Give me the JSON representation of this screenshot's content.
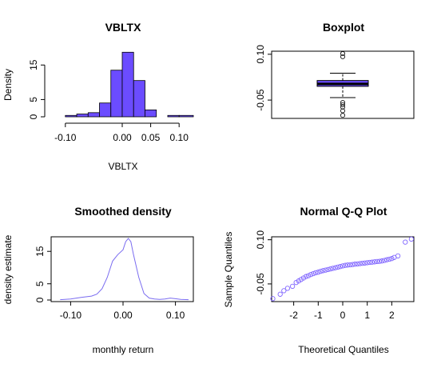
{
  "colors": {
    "fill": "#6b4cff",
    "line": "#7a6cf0",
    "qq_point": "#8066ff"
  },
  "chart_data": [
    {
      "type": "bar",
      "title": "VBLTX",
      "xlabel": "VBLTX",
      "ylabel": "Density",
      "bins": [
        {
          "x0": -0.125,
          "x1": -0.1,
          "density": 0
        },
        {
          "x0": -0.1,
          "x1": -0.08,
          "density": 0.4
        },
        {
          "x0": -0.08,
          "x1": -0.06,
          "density": 0.8
        },
        {
          "x0": -0.06,
          "x1": -0.04,
          "density": 1.2
        },
        {
          "x0": -0.04,
          "x1": -0.02,
          "density": 4
        },
        {
          "x0": -0.02,
          "x1": 0.0,
          "density": 13.5
        },
        {
          "x0": 0.0,
          "x1": 0.02,
          "density": 18.7
        },
        {
          "x0": 0.02,
          "x1": 0.04,
          "density": 10.5
        },
        {
          "x0": 0.04,
          "x1": 0.06,
          "density": 2
        },
        {
          "x0": 0.06,
          "x1": 0.08,
          "density": 0
        },
        {
          "x0": 0.08,
          "x1": 0.1,
          "density": 0.4
        },
        {
          "x0": 0.1,
          "x1": 0.125,
          "density": 0.4
        }
      ],
      "xlim": [
        -0.125,
        0.125
      ],
      "ylim": [
        0,
        19
      ],
      "xticks": [
        -0.1,
        0.0,
        0.05,
        0.1
      ],
      "xtick_labels": [
        "-0.10",
        "0.00",
        "0.05",
        "0.10"
      ],
      "yticks": [
        0,
        5,
        15
      ],
      "ytick_labels": [
        "0",
        "5",
        "15"
      ]
    },
    {
      "type": "boxplot",
      "title": "Boxplot",
      "ylim": [
        -0.11,
        0.11
      ],
      "q1": -0.005,
      "median": 0.003,
      "q3": 0.014,
      "whisker_low": -0.042,
      "whisker_high": 0.038,
      "outliers": [
        0.102,
        0.092,
        -0.058,
        -0.065,
        -0.073,
        -0.085,
        -0.1
      ],
      "yticks": [
        -0.05,
        0.1
      ],
      "ytick_labels": [
        "-0.05",
        "0.10"
      ]
    },
    {
      "type": "line",
      "title": "Smoothed density",
      "xlabel": "monthly return",
      "ylabel": "density estimate",
      "x": [
        -0.12,
        -0.1,
        -0.08,
        -0.06,
        -0.05,
        -0.04,
        -0.03,
        -0.02,
        -0.01,
        0.0,
        0.005,
        0.01,
        0.015,
        0.02,
        0.03,
        0.04,
        0.05,
        0.06,
        0.07,
        0.08,
        0.09,
        0.1,
        0.11,
        0.125
      ],
      "y": [
        0.1,
        0.3,
        0.8,
        1.2,
        1.8,
        3.5,
        7,
        12,
        14,
        15.5,
        18,
        19,
        18,
        14,
        7,
        2,
        0.6,
        0.3,
        0.2,
        0.3,
        0.6,
        0.4,
        0.2,
        0.1
      ],
      "xlim": [
        -0.125,
        0.125
      ],
      "ylim": [
        0,
        19
      ],
      "xticks": [
        -0.1,
        0.0,
        0.1
      ],
      "xtick_labels": [
        "-0.10",
        "0.00",
        "0.10"
      ],
      "yticks": [
        0,
        5,
        15
      ],
      "ytick_labels": [
        "0",
        "5",
        "15"
      ]
    },
    {
      "type": "scatter",
      "title": "Normal Q-Q Plot",
      "xlabel": "Theoretical Quantiles",
      "ylabel": "Sample Quantiles",
      "x": [
        -2.85,
        -2.55,
        -2.4,
        -2.25,
        -2.05,
        -1.9,
        -1.8,
        -1.7,
        -1.6,
        -1.5,
        -1.4,
        -1.3,
        -1.2,
        -1.1,
        -1.0,
        -0.9,
        -0.8,
        -0.7,
        -0.6,
        -0.5,
        -0.4,
        -0.3,
        -0.2,
        -0.1,
        0.0,
        0.1,
        0.2,
        0.3,
        0.4,
        0.5,
        0.6,
        0.7,
        0.8,
        0.9,
        1.0,
        1.1,
        1.2,
        1.3,
        1.4,
        1.5,
        1.6,
        1.7,
        1.8,
        1.9,
        2.0,
        2.1,
        2.25,
        2.55,
        2.8
      ],
      "y": [
        -0.1,
        -0.085,
        -0.073,
        -0.065,
        -0.058,
        -0.045,
        -0.04,
        -0.035,
        -0.03,
        -0.025,
        -0.022,
        -0.018,
        -0.015,
        -0.012,
        -0.01,
        -0.007,
        -0.005,
        -0.003,
        -0.001,
        0.001,
        0.003,
        0.005,
        0.007,
        0.009,
        0.011,
        0.013,
        0.014,
        0.015,
        0.016,
        0.017,
        0.018,
        0.019,
        0.02,
        0.021,
        0.022,
        0.023,
        0.024,
        0.025,
        0.026,
        0.027,
        0.028,
        0.03,
        0.032,
        0.034,
        0.036,
        0.04,
        0.045,
        0.092,
        0.102
      ],
      "xlim": [
        -2.9,
        2.9
      ],
      "ylim": [
        -0.11,
        0.11
      ],
      "xticks": [
        -2,
        -1,
        0,
        1,
        2
      ],
      "xtick_labels": [
        "-2",
        "-1",
        "0",
        "1",
        "2"
      ],
      "yticks": [
        -0.05,
        0.1
      ],
      "ytick_labels": [
        "-0.05",
        "0.10"
      ]
    }
  ]
}
